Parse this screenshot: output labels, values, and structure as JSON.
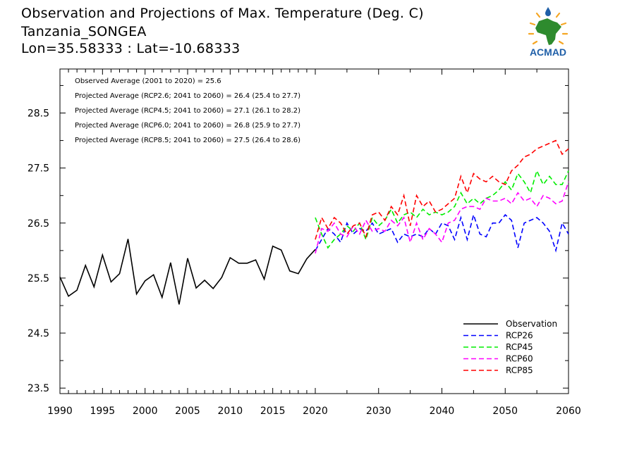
{
  "title": {
    "line1": "Observation and Projections of Max. Temperature (Deg. C)",
    "line2": "Tanzania_SONGEA",
    "line3": "Lon=35.58333 : Lat=-10.68333"
  },
  "logo": {
    "text": "ACMAD",
    "icon": "acmad-africa-logo-icon",
    "colors": {
      "africa": "#2e8b2e",
      "sun": "#f5a623",
      "text": "#1f5fa8",
      "drop": "#1f5fa8"
    }
  },
  "annotations": [
    "Observed Average (2001 to 2020) = 25.6",
    "Projected Average (RCP2.6; 2041 to 2060) = 26.4 (25.4 to 27.7)",
    "Projected Average (RCP4.5; 2041 to 2060) = 27.1 (26.1 to 28.2)",
    "Projected Average (RCP6.0; 2041 to 2060) = 26.8 (25.9 to 27.7)",
    "Projected Average (RCP8.5; 2041 to 2060) = 27.5 (26.4 to 28.6)"
  ],
  "chart_data": {
    "type": "line",
    "title": "Observation and Projections of Max. Temperature (Deg. C)",
    "xlabel": "",
    "ylabel": "",
    "ylim": [
      23.4,
      29.3
    ],
    "x_ticks": [
      1990,
      1995,
      2000,
      2005,
      2010,
      2015,
      2020,
      2030,
      2040,
      2050,
      2060
    ],
    "x_tick_labels": [
      "1990",
      "1995",
      "2000",
      "2005",
      "2010",
      "2015",
      "2020",
      "2030",
      "2040",
      "2050",
      "2060"
    ],
    "y_ticks": [
      23.5,
      24.5,
      25.5,
      26.5,
      27.5,
      28.5
    ],
    "y_tick_labels": [
      "23.5",
      "24.5",
      "25.5",
      "26.5",
      "27.5",
      "28.5"
    ],
    "legend_position": "bottom-right",
    "grid": false,
    "series": [
      {
        "name": "Observation",
        "color": "#000000",
        "style": "solid",
        "x": [
          1990,
          1991,
          1992,
          1993,
          1994,
          1995,
          1996,
          1997,
          1998,
          1999,
          2000,
          2001,
          2002,
          2003,
          2004,
          2005,
          2006,
          2007,
          2008,
          2009,
          2010,
          2011,
          2012,
          2013,
          2014,
          2015,
          2016,
          2017,
          2018,
          2019,
          2020
        ],
        "values": [
          25.52,
          25.17,
          25.28,
          25.73,
          25.34,
          25.92,
          25.43,
          25.58,
          26.21,
          25.21,
          25.45,
          25.56,
          25.15,
          25.78,
          25.02,
          25.86,
          25.32,
          25.46,
          25.31,
          25.51,
          25.87,
          25.77,
          25.77,
          25.83,
          25.48,
          26.08,
          26.01,
          25.63,
          25.58,
          25.85,
          26.02
        ]
      },
      {
        "name": "RCP26",
        "color": "#0000ff",
        "style": "dashed",
        "x": [
          2020,
          2021,
          2022,
          2023,
          2024,
          2025,
          2026,
          2027,
          2028,
          2029,
          2030,
          2031,
          2032,
          2033,
          2034,
          2035,
          2036,
          2037,
          2038,
          2039,
          2040,
          2041,
          2042,
          2043,
          2044,
          2045,
          2046,
          2047,
          2048,
          2049,
          2050,
          2051,
          2052,
          2053,
          2054,
          2055,
          2056,
          2057,
          2058,
          2059,
          2060
        ],
        "values": [
          26.0,
          26.2,
          26.4,
          26.3,
          26.15,
          26.5,
          26.3,
          26.4,
          26.35,
          26.5,
          26.3,
          26.35,
          26.4,
          26.15,
          26.3,
          26.25,
          26.3,
          26.25,
          26.4,
          26.3,
          26.5,
          26.45,
          26.2,
          26.6,
          26.2,
          26.65,
          26.3,
          26.25,
          26.5,
          26.5,
          26.65,
          26.55,
          26.05,
          26.5,
          26.55,
          26.6,
          26.5,
          26.35,
          26.0,
          26.5,
          26.3
        ]
      },
      {
        "name": "RCP45",
        "color": "#00ee00",
        "style": "dashed",
        "x": [
          2020,
          2021,
          2022,
          2023,
          2024,
          2025,
          2026,
          2027,
          2028,
          2029,
          2030,
          2031,
          2032,
          2033,
          2034,
          2035,
          2036,
          2037,
          2038,
          2039,
          2040,
          2041,
          2042,
          2043,
          2044,
          2045,
          2046,
          2047,
          2048,
          2049,
          2050,
          2051,
          2052,
          2053,
          2054,
          2055,
          2056,
          2057,
          2058,
          2059,
          2060
        ],
        "values": [
          26.6,
          26.3,
          26.05,
          26.2,
          26.3,
          26.45,
          26.35,
          26.5,
          26.2,
          26.6,
          26.45,
          26.55,
          26.75,
          26.5,
          26.65,
          26.7,
          26.6,
          26.75,
          26.65,
          26.7,
          26.65,
          26.7,
          26.8,
          27.05,
          26.85,
          26.95,
          26.85,
          26.95,
          27.0,
          27.1,
          27.25,
          27.1,
          27.4,
          27.25,
          27.05,
          27.45,
          27.2,
          27.35,
          27.2,
          27.2,
          27.45
        ]
      },
      {
        "name": "RCP60",
        "color": "#ff00ff",
        "style": "dashed",
        "x": [
          2020,
          2021,
          2022,
          2023,
          2024,
          2025,
          2026,
          2027,
          2028,
          2029,
          2030,
          2031,
          2032,
          2033,
          2034,
          2035,
          2036,
          2037,
          2038,
          2039,
          2040,
          2041,
          2042,
          2043,
          2044,
          2045,
          2046,
          2047,
          2048,
          2049,
          2050,
          2051,
          2052,
          2053,
          2054,
          2055,
          2056,
          2057,
          2058,
          2059,
          2060
        ],
        "values": [
          25.95,
          26.4,
          26.35,
          26.5,
          26.3,
          26.25,
          26.45,
          26.3,
          26.55,
          26.35,
          26.4,
          26.35,
          26.55,
          26.45,
          26.6,
          26.15,
          26.5,
          26.2,
          26.4,
          26.3,
          26.15,
          26.5,
          26.55,
          26.75,
          26.8,
          26.8,
          26.75,
          26.95,
          26.9,
          26.9,
          26.95,
          26.85,
          27.05,
          26.9,
          26.95,
          26.8,
          27.0,
          26.95,
          26.85,
          26.9,
          27.25
        ]
      },
      {
        "name": "RCP85",
        "color": "#ff0000",
        "style": "dashed",
        "x": [
          2020,
          2021,
          2022,
          2023,
          2024,
          2025,
          2026,
          2027,
          2028,
          2029,
          2030,
          2031,
          2032,
          2033,
          2034,
          2035,
          2036,
          2037,
          2038,
          2039,
          2040,
          2041,
          2042,
          2043,
          2044,
          2045,
          2046,
          2047,
          2048,
          2049,
          2050,
          2051,
          2052,
          2053,
          2054,
          2055,
          2056,
          2057,
          2058,
          2059,
          2060
        ],
        "values": [
          26.2,
          26.6,
          26.4,
          26.6,
          26.5,
          26.3,
          26.45,
          26.5,
          26.25,
          26.65,
          26.7,
          26.55,
          26.8,
          26.65,
          27.0,
          26.45,
          27.0,
          26.8,
          26.9,
          26.7,
          26.75,
          26.85,
          26.95,
          27.35,
          27.05,
          27.4,
          27.3,
          27.25,
          27.35,
          27.25,
          27.2,
          27.45,
          27.55,
          27.7,
          27.75,
          27.85,
          27.9,
          27.95,
          28.0,
          27.75,
          27.85
        ]
      }
    ]
  }
}
